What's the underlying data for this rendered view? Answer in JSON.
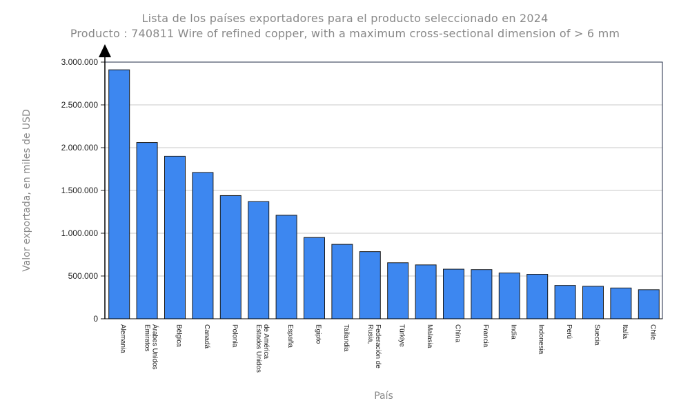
{
  "chart_data": {
    "type": "bar",
    "title": "Lista de los países exportadores para el producto seleccionado en 2024",
    "subtitle": "Producto : 740811 Wire of refined copper, with a maximum cross-sectional dimension of > 6 mm",
    "xlabel": "País",
    "ylabel": "Valor exportada, en miles de USD",
    "ylim": [
      0,
      3000000
    ],
    "yticks": [
      0,
      500000,
      1000000,
      1500000,
      2000000,
      2500000,
      3000000
    ],
    "ytick_labels": [
      "0",
      "500.000",
      "1.000.000",
      "1.500.000",
      "2.000.000",
      "2.500.000",
      "3.000.000"
    ],
    "grid": true,
    "bar_color": "#3d87f0",
    "categories": [
      [
        "Alemania"
      ],
      [
        "Emiratos",
        "Árabes Unidos"
      ],
      [
        "Bélgica"
      ],
      [
        "Canadá"
      ],
      [
        "Polonia"
      ],
      [
        "Estados Unidos",
        "de América"
      ],
      [
        "España"
      ],
      [
        "Egipto"
      ],
      [
        "Tailandia"
      ],
      [
        "Rusia,",
        "Federación de"
      ],
      [
        "Türkiye"
      ],
      [
        "Malasia"
      ],
      [
        "China"
      ],
      [
        "Francia"
      ],
      [
        "India"
      ],
      [
        "Indonesia"
      ],
      [
        "Perú"
      ],
      [
        "Suecia"
      ],
      [
        "Italia"
      ],
      [
        "Chile"
      ]
    ],
    "values": [
      2910000,
      2060000,
      1900000,
      1710000,
      1440000,
      1370000,
      1210000,
      950000,
      870000,
      785000,
      655000,
      630000,
      580000,
      575000,
      535000,
      520000,
      390000,
      380000,
      360000,
      340000
    ]
  }
}
